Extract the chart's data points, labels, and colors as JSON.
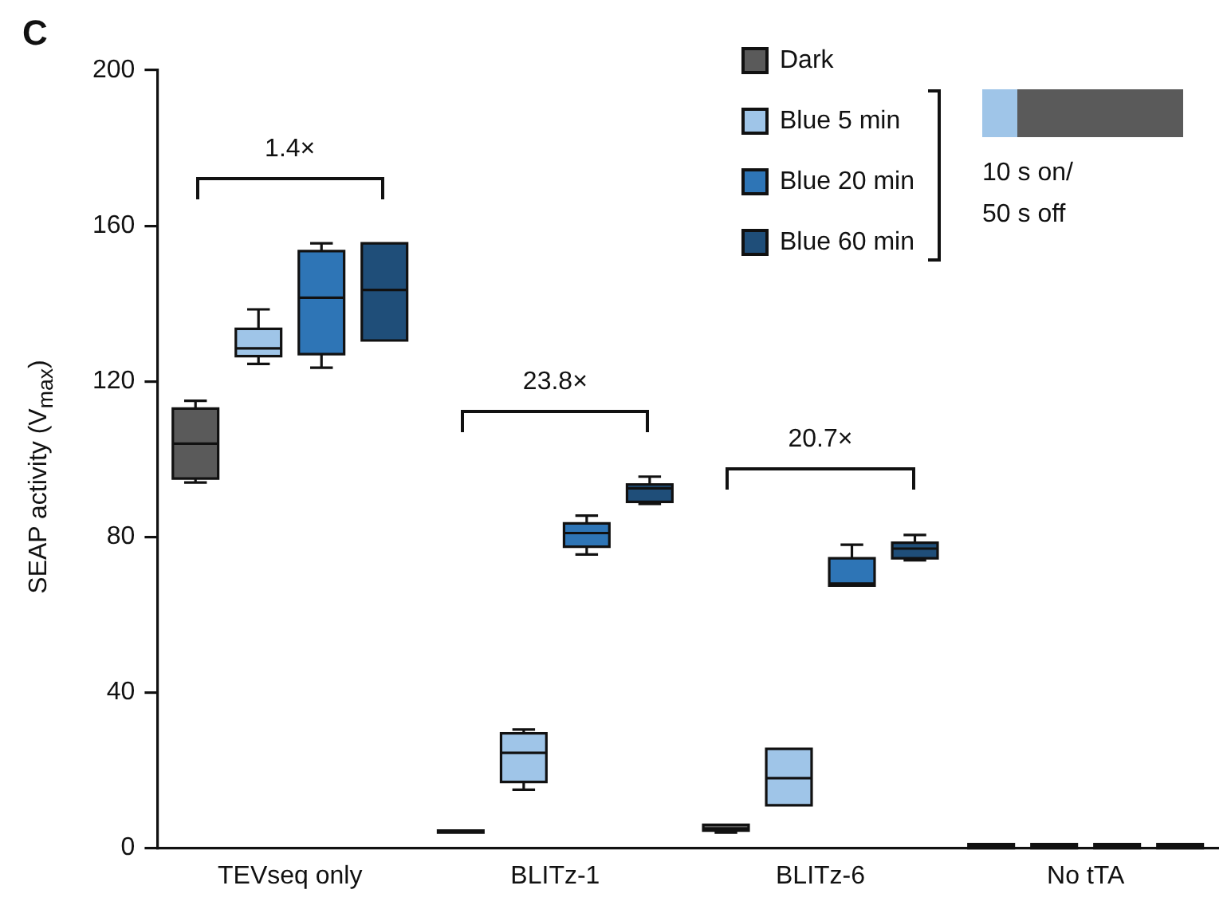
{
  "chart_data": {
    "type": "box",
    "title": "C",
    "ylabel": "SEAP activity (V$_{max}$)",
    "categories": [
      "TEVseq only",
      "BLITz-1",
      "BLITz-6",
      "No tTA"
    ],
    "ylim": [
      0,
      200
    ],
    "yticks": [
      0,
      40,
      80,
      120,
      160,
      200
    ],
    "grid": false,
    "legend": "top right",
    "series": [
      {
        "name": "Dark",
        "color": "#5a5a5a",
        "boxes": [
          {
            "low": 94,
            "q1": 95,
            "median": 104,
            "q3": 113,
            "high": 115
          },
          {
            "low": 4,
            "q1": 4,
            "median": 4,
            "q3": 4.5,
            "high": 4.5
          },
          {
            "low": 4,
            "q1": 4.5,
            "median": 5,
            "q3": 6,
            "high": 6
          },
          {
            "low": 0,
            "q1": 0,
            "median": 0.5,
            "q3": 1,
            "high": 1
          }
        ]
      },
      {
        "name": "Blue 5 min",
        "color": "#9fc5e8",
        "boxes": [
          {
            "low": 124.5,
            "q1": 126.5,
            "median": 128.5,
            "q3": 133.5,
            "high": 138.5
          },
          {
            "low": 15,
            "q1": 17,
            "median": 24.5,
            "q3": 29.5,
            "high": 30.5
          },
          {
            "low": 11,
            "q1": 11,
            "median": 18,
            "q3": 25.5,
            "high": 25.5
          },
          {
            "low": 0,
            "q1": 0,
            "median": 0.5,
            "q3": 1,
            "high": 1
          }
        ]
      },
      {
        "name": "Blue 20 min",
        "color": "#2e75b6",
        "boxes": [
          {
            "low": 123.5,
            "q1": 127,
            "median": 141.5,
            "q3": 153.5,
            "high": 155.5
          },
          {
            "low": 75.5,
            "q1": 77.5,
            "median": 81,
            "q3": 83.5,
            "high": 85.5
          },
          {
            "low": 67.5,
            "q1": 67.5,
            "median": 68,
            "q3": 74.5,
            "high": 78
          },
          {
            "low": 0,
            "q1": 0,
            "median": 0.5,
            "q3": 1,
            "high": 1
          }
        ]
      },
      {
        "name": "Blue 60 min",
        "color": "#1f4e79",
        "boxes": [
          {
            "low": 130.5,
            "q1": 130.5,
            "median": 143.5,
            "q3": 155.5,
            "high": 155.5
          },
          {
            "low": 88.5,
            "q1": 89,
            "median": 92.5,
            "q3": 93.5,
            "high": 95.5
          },
          {
            "low": 74,
            "q1": 74.5,
            "median": 77,
            "q3": 78.5,
            "high": 80.5
          },
          {
            "low": 0,
            "q1": 0,
            "median": 0.5,
            "q3": 1,
            "high": 1
          }
        ]
      }
    ],
    "annotations": [
      "1.4×",
      "23.8×",
      "20.7×",
      "10 s on/ 50 s off"
    ]
  }
}
